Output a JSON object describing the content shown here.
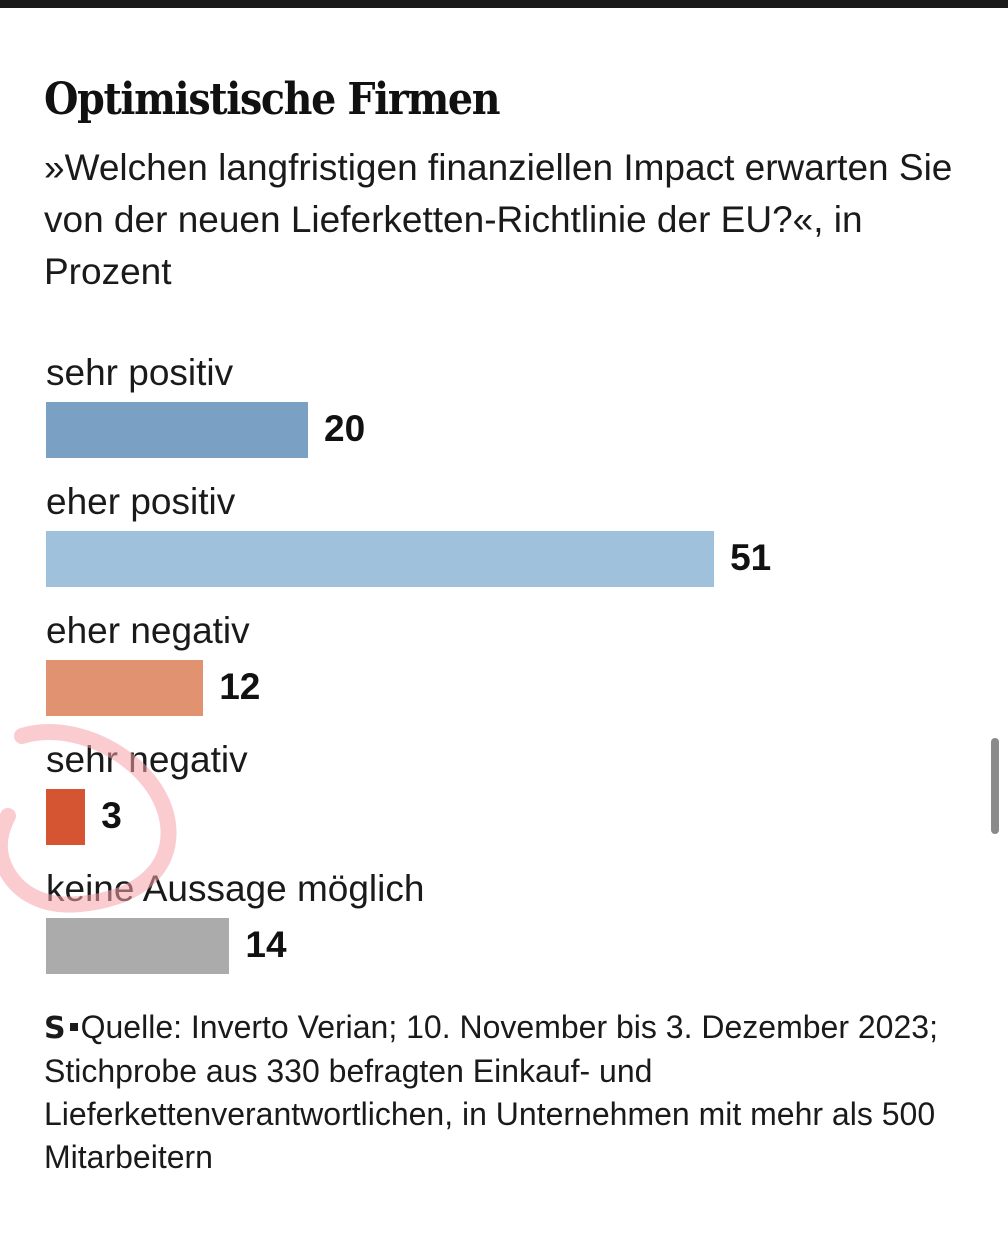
{
  "header": {
    "title": "Optimistische Firmen",
    "subtitle": "»Welchen langfristigen finanziellen Impact erwarten Sie von der neuen Lieferketten-Richtlinie der EU?«, in Prozent"
  },
  "chart_data": {
    "type": "bar",
    "orientation": "horizontal",
    "title": "Optimistische Firmen",
    "subtitle": "»Welchen langfristigen finanziellen Impact erwarten Sie von der neuen Lieferketten-Richtlinie der EU?«, in Prozent",
    "categories": [
      "sehr positiv",
      "eher positiv",
      "eher negativ",
      "sehr negativ",
      "keine Aussage möglich"
    ],
    "values": [
      20,
      51,
      12,
      3,
      14
    ],
    "colors": [
      "#7aa1c3",
      "#9fc1dc",
      "#e19270",
      "#d55533",
      "#ababab"
    ],
    "xlim": [
      0,
      100
    ],
    "grid": false,
    "legend": "none"
  },
  "footer": {
    "logo": "S",
    "source": "Quelle: Inverto Verian; 10. November bis 3. Dezember 2023; Stichprobe aus 330 befragten Einkauf- und Lieferkettenverantwortlichen, in Unternehmen mit mehr als 500 Mitarbeitern"
  },
  "overlay": {
    "annotation_color": "#f7a3a8"
  }
}
